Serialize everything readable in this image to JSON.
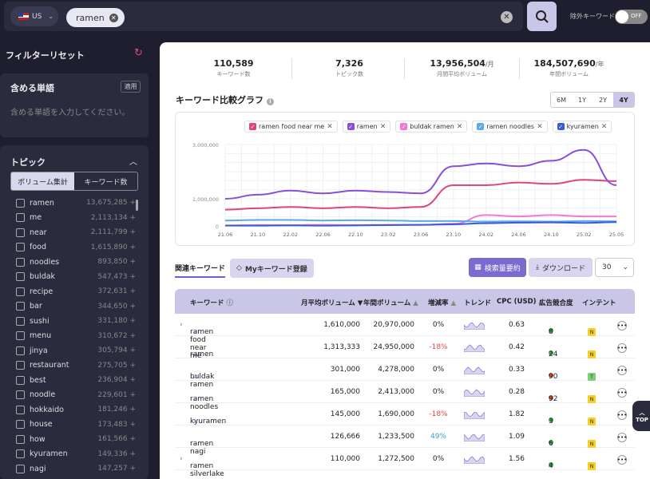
{
  "search": {
    "country": "US",
    "query": "ramen",
    "exclude_label": "除外キーワード",
    "toggle": "OFF"
  },
  "sidebar": {
    "filter_reset": "フィルターリセット",
    "include": {
      "title": "含める単語",
      "apply": "適用",
      "placeholder": "含める単語を入力してください。"
    },
    "topic": {
      "title": "トピック",
      "seg_volume": "ボリューム集計",
      "seg_count": "キーワード数",
      "items": [
        {
          "name": "ramen",
          "value": "13,675,285 +"
        },
        {
          "name": "me",
          "value": "2,113,134 +"
        },
        {
          "name": "near",
          "value": "2,111,799 +"
        },
        {
          "name": "food",
          "value": "1,615,890 +"
        },
        {
          "name": "noodles",
          "value": "893,850 +"
        },
        {
          "name": "buldak",
          "value": "547,473 +"
        },
        {
          "name": "recipe",
          "value": "372,631 +"
        },
        {
          "name": "bar",
          "value": "344,650 +"
        },
        {
          "name": "sushi",
          "value": "331,180 +"
        },
        {
          "name": "menu",
          "value": "310,672 +"
        },
        {
          "name": "jinya",
          "value": "305,794 +"
        },
        {
          "name": "restaurant",
          "value": "275,705 +"
        },
        {
          "name": "best",
          "value": "236,904 +"
        },
        {
          "name": "noodle",
          "value": "229,601 +"
        },
        {
          "name": "hokkaido",
          "value": "181,246 +"
        },
        {
          "name": "house",
          "value": "173,483 +"
        },
        {
          "name": "how",
          "value": "161,566 +"
        },
        {
          "name": "kyuramen",
          "value": "149,336 +"
        },
        {
          "name": "nagi",
          "value": "147,257 +"
        }
      ]
    }
  },
  "stats": [
    {
      "value": "110,589",
      "unit": "",
      "label": "キーワード数"
    },
    {
      "value": "7,326",
      "unit": "",
      "label": "トピック数"
    },
    {
      "value": "13,956,504",
      "unit": "/月",
      "label": "月間平均ボリューム"
    },
    {
      "value": "184,507,690",
      "unit": "/年",
      "label": "年間ボリューム"
    }
  ],
  "chart_title": "キーワード比較グラフ",
  "ranges": [
    "6M",
    "1Y",
    "2Y",
    "4Y"
  ],
  "chart_data": {
    "type": "line",
    "x": [
      "21.06",
      "21.10",
      "22.02",
      "22.06",
      "22.10",
      "23.02",
      "23.06",
      "23.10",
      "24.02",
      "24.06",
      "24.10",
      "25.02",
      "25.05"
    ],
    "ylim": [
      0,
      3000000
    ],
    "yticks": [
      "3,000,000",
      "1,000,000",
      "0"
    ],
    "series": [
      {
        "name": "ramen food near me",
        "color": "#e0447c",
        "values": [
          600000,
          650000,
          700000,
          650000,
          700000,
          650000,
          700000,
          1500000,
          1500000,
          1600000,
          1550000,
          1700000,
          1650000
        ]
      },
      {
        "name": "ramen",
        "color": "#8a4fd8",
        "values": [
          1000000,
          1150000,
          1300000,
          1200000,
          1300000,
          1250000,
          1200000,
          2200000,
          2300000,
          2200000,
          2400000,
          2800000,
          1500000
        ]
      },
      {
        "name": "buldak ramen",
        "color": "#f07ad0",
        "values": [
          20000,
          30000,
          30000,
          40000,
          30000,
          40000,
          40000,
          80000,
          400000,
          350000,
          400000,
          350000,
          350000
        ]
      },
      {
        "name": "ramen noodles",
        "color": "#5aaae8",
        "values": [
          200000,
          220000,
          220000,
          200000,
          210000,
          200000,
          180000,
          180000,
          160000,
          170000,
          160000,
          180000,
          170000
        ]
      },
      {
        "name": "kyuramen",
        "color": "#3a5ad8",
        "values": [
          10000,
          10000,
          20000,
          10000,
          20000,
          30000,
          40000,
          60000,
          100000,
          120000,
          130000,
          110000,
          140000
        ]
      }
    ]
  },
  "actions": {
    "tab_related": "関連キーワード",
    "tab_my": "Myキーワード登録",
    "summary": "検索量要約",
    "download": "ダウンロード",
    "page_size": "30"
  },
  "table": {
    "headers": {
      "keyword": "キーワード",
      "monthly": "月平均ボリューム",
      "yearly": "年間ボリューム",
      "growth": "増減率",
      "trend": "トレンド",
      "cpc": "CPC (USD)",
      "competition": "広告競合度",
      "intent": "インテント"
    },
    "rows": [
      {
        "expand": "›",
        "keyword": "ramen food near me",
        "chart": true,
        "monthly": "1,610,000",
        "yearly": "20,970,000",
        "growth": "0%",
        "g": "",
        "cpc": "0.63",
        "comp": "8",
        "cc": "#3aa84a",
        "intent": [
          "N"
        ]
      },
      {
        "expand": "",
        "keyword": "ramen",
        "chart": true,
        "monthly": "1,313,333",
        "yearly": "24,950,000",
        "growth": "-18%",
        "g": "neg",
        "cpc": "0.42",
        "comp": "24",
        "cc": "#3aa84a",
        "intent": [
          "I",
          "N"
        ]
      },
      {
        "expand": "",
        "keyword": "buldak ramen",
        "chart": true,
        "monthly": "301,000",
        "yearly": "4,278,000",
        "growth": "0%",
        "g": "",
        "cpc": "0.33",
        "comp": "90",
        "cc": "#e05030",
        "intent": [
          "I",
          "T"
        ]
      },
      {
        "expand": "",
        "keyword": "ramen noodles",
        "chart": true,
        "monthly": "165,000",
        "yearly": "2,413,000",
        "growth": "0%",
        "g": "",
        "cpc": "0.28",
        "comp": "92",
        "cc": "#e05030",
        "intent": [
          "I",
          "N"
        ]
      },
      {
        "expand": "",
        "keyword": "kyuramen",
        "chart": true,
        "monthly": "145,000",
        "yearly": "1,690,000",
        "growth": "-18%",
        "g": "neg",
        "cpc": "1.82",
        "comp": "3",
        "cc": "#3aa84a",
        "intent": [
          "N"
        ]
      },
      {
        "expand": "",
        "keyword": "ramen nagi",
        "chart": false,
        "monthly": "126,666",
        "yearly": "1,233,500",
        "growth": "49%",
        "g": "pos",
        "cpc": "1.09",
        "comp": "6",
        "cc": "#3aa84a",
        "intent": [
          "I",
          "N"
        ]
      },
      {
        "expand": "›",
        "keyword": "ramen silverlake",
        "chart": false,
        "monthly": "110,000",
        "yearly": "1,272,500",
        "growth": "0%",
        "g": "",
        "cpc": "1.56",
        "comp": "4",
        "cc": "#3aa84a",
        "intent": [
          "I",
          "N"
        ]
      }
    ]
  },
  "top_label": "TOP"
}
